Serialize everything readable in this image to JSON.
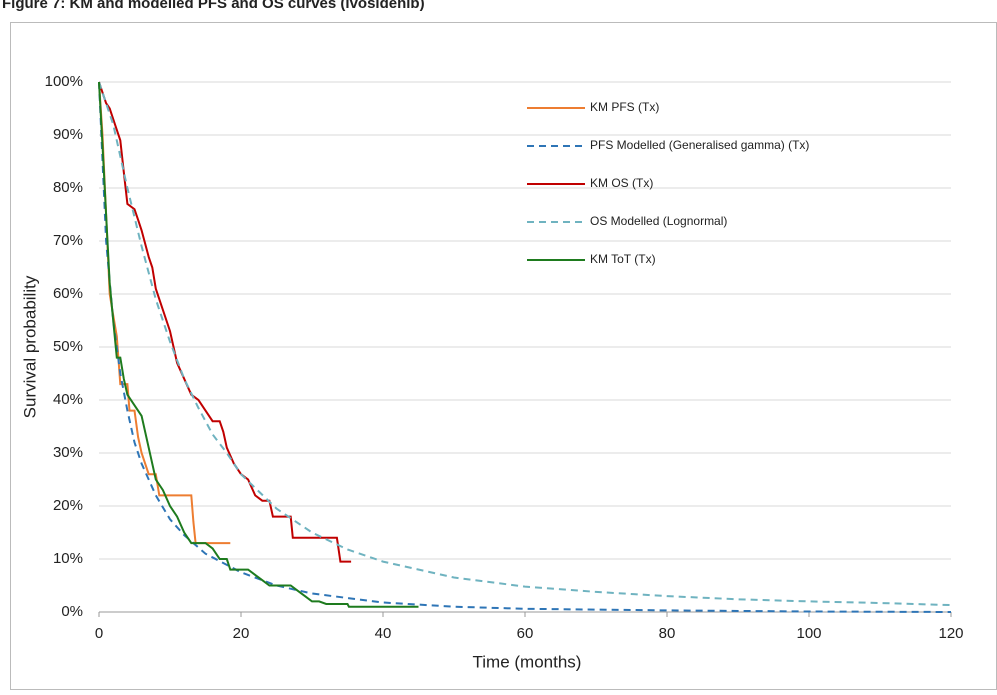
{
  "chart_data": {
    "type": "line",
    "title": "Figure 7: KM and modelled PFS and OS curves (ivosidenib)",
    "x_label": "Time (months)",
    "y_label": "Survival probability",
    "xlim": [
      0,
      120
    ],
    "xticks": [
      0,
      20,
      40,
      60,
      80,
      100,
      120
    ],
    "ylim": [
      0,
      100
    ],
    "yticks": [
      {
        "value": 0,
        "label": "0%"
      },
      {
        "value": 10,
        "label": "10%"
      },
      {
        "value": 20,
        "label": "20%"
      },
      {
        "value": 30,
        "label": "30%"
      },
      {
        "value": 40,
        "label": "40%"
      },
      {
        "value": 50,
        "label": "50%"
      },
      {
        "value": 60,
        "label": "60%"
      },
      {
        "value": 70,
        "label": "70%"
      },
      {
        "value": 80,
        "label": "80%"
      },
      {
        "value": 90,
        "label": "90%"
      },
      {
        "value": 100,
        "label": "100%"
      }
    ],
    "grid": true,
    "legend": "top-right",
    "series": [
      {
        "name": "KM PFS (Tx)",
        "color": "#ed7d31",
        "dashed": false,
        "x": [
          0,
          0.5,
          1,
          1.5,
          2,
          2.5,
          3,
          4,
          4.3,
          5,
          5.5,
          6,
          7,
          8,
          8.5,
          10,
          13,
          13.3,
          13.6,
          18.5
        ],
        "values": [
          100,
          90,
          75,
          60,
          56,
          52,
          43,
          43,
          38,
          38,
          33,
          30,
          26,
          26,
          22,
          22,
          22,
          17,
          13,
          13
        ]
      },
      {
        "name": "PFS Modelled (Generalised gamma) (Tx)",
        "color": "#2e75b6",
        "dashed": true,
        "x": [
          0,
          1,
          2,
          3,
          4,
          5,
          6,
          8,
          10,
          12,
          15,
          20,
          25,
          30,
          40,
          50,
          60,
          80,
          100,
          120
        ],
        "values": [
          100,
          70,
          55,
          45,
          38,
          32,
          28,
          22,
          17.5,
          14.5,
          11,
          7.5,
          5,
          3.5,
          1.8,
          1,
          0.6,
          0.3,
          0.1,
          0
        ]
      },
      {
        "name": "KM OS (Tx)",
        "color": "#c00000",
        "dashed": false,
        "x": [
          0,
          0.5,
          1,
          1.5,
          2,
          3,
          3.5,
          4,
          5,
          5.5,
          6,
          7,
          7.5,
          8,
          9,
          10,
          11,
          12,
          13,
          14,
          15,
          16,
          17,
          17.5,
          18,
          19,
          20,
          21,
          22,
          23,
          24,
          24.5,
          27,
          27.3,
          33.5,
          34,
          35.5
        ],
        "values": [
          100,
          98,
          96,
          95,
          93,
          89,
          83,
          77,
          76,
          74,
          72,
          67,
          65,
          61,
          57,
          53,
          47,
          44,
          41,
          40,
          38,
          36,
          36,
          34,
          31,
          28,
          26,
          25,
          22,
          21,
          21,
          18,
          18,
          14,
          14,
          9.5,
          9.5
        ]
      },
      {
        "name": "OS Modelled (Lognormal)",
        "color": "#6fb3c0",
        "dashed": true,
        "x": [
          0,
          2,
          4,
          6,
          8,
          10,
          12,
          14,
          16,
          18,
          20,
          25,
          30,
          35,
          40,
          50,
          60,
          70,
          80,
          90,
          100,
          110,
          120
        ],
        "values": [
          100,
          92,
          80,
          69,
          59,
          51,
          44,
          38.5,
          33.5,
          30,
          26,
          19.5,
          15,
          11.8,
          9.5,
          6.5,
          4.8,
          3.8,
          3,
          2.4,
          2,
          1.7,
          1.3
        ]
      },
      {
        "name": "KM ToT (Tx)",
        "color": "#1e7b1e",
        "dashed": false,
        "x": [
          0,
          0.5,
          1,
          1.5,
          2,
          2.5,
          3,
          3.5,
          4,
          5,
          6,
          7,
          8,
          9,
          10,
          11,
          12,
          13,
          15,
          16,
          17,
          18,
          18.5,
          21,
          22,
          23,
          24,
          27,
          28,
          29,
          30,
          31,
          32,
          35,
          35.2,
          45
        ],
        "values": [
          100,
          88,
          75,
          62,
          55,
          48,
          48,
          44,
          41,
          39,
          37,
          31,
          25,
          23,
          20,
          18,
          15,
          13,
          13,
          12,
          10,
          10,
          8,
          8,
          7,
          6,
          5,
          5,
          4,
          3,
          2,
          2,
          1.5,
          1.5,
          1,
          1
        ]
      }
    ]
  }
}
